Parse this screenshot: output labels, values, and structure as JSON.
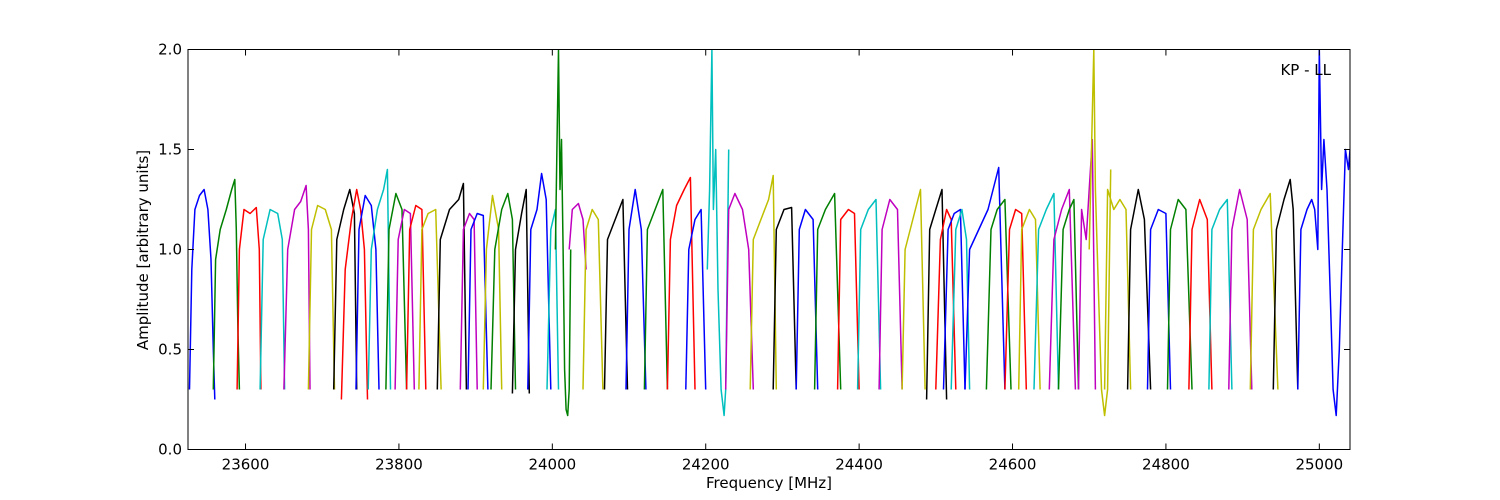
{
  "chart_data": {
    "type": "line",
    "title": "",
    "annotation": "KP - LL",
    "xlabel": "Frequency [MHz]",
    "ylabel": "Amplitude [arbitrary units]",
    "xlim": [
      23525,
      25040
    ],
    "ylim": [
      0.0,
      2.0
    ],
    "x_ticks": [
      23600,
      23800,
      24000,
      24200,
      24400,
      24600,
      24800,
      25000
    ],
    "y_ticks": [
      0.0,
      0.5,
      1.0,
      1.5,
      2.0
    ],
    "x_tick_labels": [
      "23600",
      "23800",
      "24000",
      "24200",
      "24400",
      "24600",
      "24800",
      "25000"
    ],
    "y_tick_labels": [
      "0.0",
      "0.5",
      "1.0",
      "1.5",
      "2.0"
    ],
    "grid": false,
    "series_colors": [
      "#0000ff",
      "#008000",
      "#ff0000",
      "#00bfbf",
      "#bf00bf",
      "#bfbf00",
      "#000000"
    ],
    "series": [
      {
        "color": "#0000ff",
        "x": [
          23527,
          23530,
          23534,
          23540,
          23546,
          23551,
          23555,
          23558,
          23560
        ],
        "y": [
          0.3,
          0.9,
          1.2,
          1.27,
          1.3,
          1.2,
          0.95,
          0.5,
          0.25
        ]
      },
      {
        "color": "#008000",
        "x": [
          23558,
          23561,
          23567,
          23575,
          23582,
          23586,
          23588,
          23590,
          23592
        ],
        "y": [
          0.3,
          0.95,
          1.1,
          1.2,
          1.3,
          1.35,
          1.1,
          0.6,
          0.3
        ]
      },
      {
        "color": "#ff0000",
        "x": [
          23589,
          23592,
          23598,
          23606,
          23614,
          23618,
          23620
        ],
        "y": [
          0.3,
          1.0,
          1.2,
          1.18,
          1.21,
          1.0,
          0.3
        ]
      },
      {
        "color": "#00bfbf",
        "x": [
          23619,
          23623,
          23632,
          23642,
          23648,
          23651
        ],
        "y": [
          0.3,
          1.05,
          1.2,
          1.18,
          1.05,
          0.3
        ]
      },
      {
        "color": "#bf00bf",
        "x": [
          23650,
          23655,
          23664,
          23672,
          23679,
          23682,
          23684
        ],
        "y": [
          0.3,
          1.0,
          1.2,
          1.24,
          1.32,
          1.1,
          0.3
        ]
      },
      {
        "color": "#bfbf00",
        "x": [
          23682,
          23686,
          23694,
          23704,
          23712,
          23716
        ],
        "y": [
          0.3,
          1.1,
          1.22,
          1.2,
          1.1,
          0.3
        ]
      },
      {
        "color": "#000000",
        "x": [
          23715,
          23719,
          23728,
          23736,
          23742,
          23745
        ],
        "y": [
          0.3,
          1.05,
          1.2,
          1.3,
          1.18,
          0.3
        ]
      },
      {
        "color": "#ff0000",
        "x": [
          23725,
          23730,
          23738,
          23745,
          23750,
          23755,
          23759
        ],
        "y": [
          0.25,
          0.9,
          1.15,
          1.3,
          1.2,
          1.0,
          0.25
        ]
      },
      {
        "color": "#0000ff",
        "x": [
          23744,
          23748,
          23756,
          23764,
          23770,
          23774
        ],
        "y": [
          0.3,
          1.1,
          1.27,
          1.22,
          1.0,
          0.3
        ]
      },
      {
        "color": "#00bfbf",
        "x": [
          23760,
          23764,
          23772,
          23780,
          23785,
          23789
        ],
        "y": [
          0.3,
          1.0,
          1.2,
          1.3,
          1.4,
          0.3
        ]
      },
      {
        "color": "#008000",
        "x": [
          23783,
          23787,
          23796,
          23804,
          23810
        ],
        "y": [
          0.3,
          1.1,
          1.28,
          1.2,
          0.3
        ]
      },
      {
        "color": "#bf00bf",
        "x": [
          23795,
          23799,
          23807,
          23815,
          23820
        ],
        "y": [
          0.3,
          1.05,
          1.2,
          1.18,
          0.3
        ]
      },
      {
        "color": "#ff0000",
        "x": [
          23810,
          23814,
          23822,
          23830,
          23835
        ],
        "y": [
          0.3,
          1.1,
          1.22,
          1.2,
          0.3
        ]
      },
      {
        "color": "#bfbf00",
        "x": [
          23826,
          23830,
          23838,
          23848,
          23855
        ],
        "y": [
          0.3,
          1.1,
          1.18,
          1.2,
          0.3
        ]
      },
      {
        "color": "#000000",
        "x": [
          23850,
          23854,
          23866,
          23878,
          23884,
          23888
        ],
        "y": [
          0.3,
          1.05,
          1.2,
          1.25,
          1.33,
          0.3
        ]
      },
      {
        "color": "#bf00bf",
        "x": [
          23880,
          23884,
          23892,
          23898,
          23902
        ],
        "y": [
          0.3,
          1.1,
          1.18,
          1.15,
          0.3
        ]
      },
      {
        "color": "#0000ff",
        "x": [
          23890,
          23894,
          23902,
          23910,
          23916
        ],
        "y": [
          0.3,
          1.1,
          1.18,
          1.17,
          0.3
        ]
      },
      {
        "color": "#bfbf00",
        "x": [
          23910,
          23914,
          23922,
          23930,
          23934
        ],
        "y": [
          0.3,
          1.0,
          1.27,
          1.1,
          0.3
        ]
      },
      {
        "color": "#008000",
        "x": [
          23920,
          23925,
          23934,
          23942,
          23948,
          23952
        ],
        "y": [
          0.3,
          1.0,
          1.2,
          1.28,
          1.15,
          0.3
        ]
      },
      {
        "color": "#000000",
        "x": [
          23948,
          23952,
          23960,
          23966,
          23970
        ],
        "y": [
          0.28,
          1.0,
          1.18,
          1.3,
          0.28
        ]
      },
      {
        "color": "#0000ff",
        "x": [
          23968,
          23972,
          23980,
          23986,
          23992,
          23998
        ],
        "y": [
          0.3,
          1.1,
          1.2,
          1.38,
          1.25,
          0.3
        ]
      },
      {
        "color": "#00bfbf",
        "x": [
          23993,
          23998,
          24004,
          24008
        ],
        "y": [
          0.3,
          1.1,
          1.2,
          0.3
        ]
      },
      {
        "color": "#008000",
        "x": [
          24004,
          24006,
          24008,
          24010,
          24012,
          24014,
          24016,
          24018,
          24020,
          24022,
          24024
        ],
        "y": [
          1.0,
          1.5,
          2.0,
          1.3,
          1.55,
          1.0,
          0.4,
          0.2,
          0.17,
          0.3,
          1.0
        ]
      },
      {
        "color": "#bf00bf",
        "x": [
          24022,
          24026,
          24034,
          24040,
          24044
        ],
        "y": [
          1.0,
          1.2,
          1.23,
          1.15,
          0.9
        ]
      },
      {
        "color": "#bfbf00",
        "x": [
          24040,
          24044,
          24052,
          24060,
          24066
        ],
        "y": [
          0.3,
          1.1,
          1.2,
          1.15,
          0.3
        ]
      },
      {
        "color": "#000000",
        "x": [
          24068,
          24072,
          24082,
          24092,
          24098
        ],
        "y": [
          0.3,
          1.05,
          1.15,
          1.25,
          0.3
        ]
      },
      {
        "color": "#0000ff",
        "x": [
          24096,
          24100,
          24108,
          24116,
          24122
        ],
        "y": [
          0.3,
          1.1,
          1.3,
          1.1,
          0.3
        ]
      },
      {
        "color": "#008000",
        "x": [
          24120,
          24124,
          24134,
          24144,
          24150
        ],
        "y": [
          0.3,
          1.1,
          1.2,
          1.3,
          0.3
        ]
      },
      {
        "color": "#ff0000",
        "x": [
          24150,
          24154,
          24162,
          24172,
          24180,
          24186
        ],
        "y": [
          0.3,
          1.05,
          1.22,
          1.3,
          1.36,
          0.3
        ]
      },
      {
        "color": "#0000ff",
        "x": [
          24174,
          24178,
          24186,
          24194,
          24200
        ],
        "y": [
          0.3,
          1.0,
          1.15,
          1.2,
          0.3
        ]
      },
      {
        "color": "#00bfbf",
        "x": [
          24202,
          24205,
          24208,
          24210,
          24213,
          24216,
          24220,
          24224,
          24226,
          24230
        ],
        "y": [
          0.9,
          1.3,
          2.0,
          1.2,
          1.5,
          0.8,
          0.3,
          0.17,
          0.3,
          1.5
        ]
      },
      {
        "color": "#bf00bf",
        "x": [
          24226,
          24230,
          24238,
          24248,
          24256,
          24262
        ],
        "y": [
          0.3,
          1.2,
          1.28,
          1.2,
          1.0,
          0.3
        ]
      },
      {
        "color": "#bfbf00",
        "x": [
          24258,
          24262,
          24272,
          24282,
          24288,
          24292
        ],
        "y": [
          0.3,
          1.05,
          1.15,
          1.25,
          1.37,
          0.3
        ]
      },
      {
        "color": "#000000",
        "x": [
          24288,
          24292,
          24302,
          24312,
          24318
        ],
        "y": [
          0.3,
          1.1,
          1.2,
          1.21,
          0.3
        ]
      },
      {
        "color": "#0000ff",
        "x": [
          24318,
          24322,
          24330,
          24340,
          24346
        ],
        "y": [
          0.3,
          1.1,
          1.2,
          1.15,
          0.3
        ]
      },
      {
        "color": "#008000",
        "x": [
          24342,
          24346,
          24356,
          24368,
          24376
        ],
        "y": [
          0.3,
          1.1,
          1.2,
          1.28,
          0.3
        ]
      },
      {
        "color": "#ff0000",
        "x": [
          24372,
          24376,
          24386,
          24394,
          24400
        ],
        "y": [
          0.3,
          1.15,
          1.2,
          1.18,
          0.3
        ]
      },
      {
        "color": "#00bfbf",
        "x": [
          24398,
          24402,
          24412,
          24422,
          24428
        ],
        "y": [
          0.3,
          1.1,
          1.2,
          1.25,
          0.3
        ]
      },
      {
        "color": "#bf00bf",
        "x": [
          24426,
          24430,
          24440,
          24450,
          24456
        ],
        "y": [
          0.3,
          1.1,
          1.25,
          1.2,
          0.3
        ]
      },
      {
        "color": "#bfbf00",
        "x": [
          24456,
          24460,
          24470,
          24480,
          24486
        ],
        "y": [
          0.3,
          1.0,
          1.15,
          1.3,
          0.3
        ]
      },
      {
        "color": "#000000",
        "x": [
          24488,
          24492,
          24500,
          24508,
          24514
        ],
        "y": [
          0.25,
          1.1,
          1.2,
          1.3,
          0.25
        ]
      },
      {
        "color": "#ff0000",
        "x": [
          24500,
          24506,
          24514,
          24520,
          24526
        ],
        "y": [
          0.3,
          1.05,
          1.2,
          1.15,
          0.3
        ]
      },
      {
        "color": "#0000ff",
        "x": [
          24510,
          24516,
          24524,
          24532,
          24538
        ],
        "y": [
          0.3,
          1.1,
          1.18,
          1.2,
          0.3
        ]
      },
      {
        "color": "#00bfbf",
        "x": [
          24520,
          24526,
          24534,
          24540,
          24544
        ],
        "y": [
          0.3,
          1.1,
          1.2,
          1.05,
          0.3
        ]
      },
      {
        "color": "#0000ff",
        "x": [
          24538,
          24544,
          24556,
          24568,
          24582,
          24590
        ],
        "y": [
          0.3,
          1.0,
          1.1,
          1.2,
          1.41,
          0.3
        ]
      },
      {
        "color": "#008000",
        "x": [
          24566,
          24572,
          24580,
          24590,
          24598
        ],
        "y": [
          0.3,
          1.1,
          1.2,
          1.25,
          0.3
        ]
      },
      {
        "color": "#ff0000",
        "x": [
          24590,
          24596,
          24604,
          24612,
          24618
        ],
        "y": [
          0.3,
          1.1,
          1.2,
          1.18,
          0.3
        ]
      },
      {
        "color": "#bfbf00",
        "x": [
          24608,
          24612,
          24622,
          24630,
          24636
        ],
        "y": [
          0.3,
          1.1,
          1.2,
          1.15,
          0.3
        ]
      },
      {
        "color": "#00bfbf",
        "x": [
          24628,
          24634,
          24644,
          24654,
          24660
        ],
        "y": [
          0.3,
          1.1,
          1.2,
          1.28,
          0.3
        ]
      },
      {
        "color": "#bf00bf",
        "x": [
          24648,
          24654,
          24664,
          24674,
          24682
        ],
        "y": [
          0.3,
          1.05,
          1.2,
          1.3,
          0.3
        ]
      },
      {
        "color": "#008000",
        "x": [
          24660,
          24666,
          24674,
          24680,
          24686
        ],
        "y": [
          0.3,
          1.1,
          1.2,
          1.25,
          0.3
        ]
      },
      {
        "color": "#bf00bf",
        "x": [
          24686,
          24690,
          24696,
          24700,
          24704,
          24708
        ],
        "y": [
          0.3,
          1.2,
          1.05,
          1.3,
          1.55,
          0.3
        ]
      },
      {
        "color": "#bfbf00",
        "x": [
          24700,
          24703,
          24706,
          24708,
          24712,
          24716,
          24720,
          24724,
          24728
        ],
        "y": [
          1.0,
          1.5,
          2.0,
          1.3,
          0.8,
          0.3,
          0.17,
          0.3,
          1.4
        ]
      },
      {
        "color": "#bfbf00",
        "x": [
          24720,
          24724,
          24732,
          24740,
          24748,
          24754
        ],
        "y": [
          0.3,
          1.3,
          1.2,
          1.25,
          1.2,
          0.3
        ]
      },
      {
        "color": "#000000",
        "x": [
          24750,
          24754,
          24764,
          24772,
          24780
        ],
        "y": [
          0.3,
          1.1,
          1.3,
          1.15,
          0.3
        ]
      },
      {
        "color": "#0000ff",
        "x": [
          24776,
          24780,
          24790,
          24800,
          24806
        ],
        "y": [
          0.3,
          1.1,
          1.2,
          1.18,
          0.3
        ]
      },
      {
        "color": "#008000",
        "x": [
          24802,
          24806,
          24816,
          24826,
          24834
        ],
        "y": [
          0.3,
          1.1,
          1.25,
          1.2,
          0.3
        ]
      },
      {
        "color": "#ff0000",
        "x": [
          24830,
          24834,
          24844,
          24854,
          24860
        ],
        "y": [
          0.3,
          1.1,
          1.25,
          1.15,
          0.3
        ]
      },
      {
        "color": "#00bfbf",
        "x": [
          24856,
          24860,
          24870,
          24880,
          24886
        ],
        "y": [
          0.3,
          1.1,
          1.2,
          1.25,
          0.3
        ]
      },
      {
        "color": "#bf00bf",
        "x": [
          24882,
          24886,
          24896,
          24906,
          24912
        ],
        "y": [
          0.3,
          1.1,
          1.3,
          1.15,
          0.3
        ]
      },
      {
        "color": "#bfbf00",
        "x": [
          24910,
          24914,
          24924,
          24936,
          24946
        ],
        "y": [
          0.3,
          1.1,
          1.2,
          1.28,
          0.3
        ]
      },
      {
        "color": "#000000",
        "x": [
          24940,
          24944,
          24954,
          24962,
          24966,
          24972
        ],
        "y": [
          0.3,
          1.1,
          1.25,
          1.35,
          1.2,
          0.3
        ]
      },
      {
        "color": "#0000ff",
        "x": [
          24972,
          24976,
          24984,
          24990,
          24994,
          24998,
          25000,
          25003,
          25006,
          25010,
          25014,
          25018,
          25022,
          25026,
          25030,
          25034,
          25038,
          25040
        ],
        "y": [
          0.3,
          1.1,
          1.2,
          1.25,
          1.2,
          1.0,
          2.0,
          1.3,
          1.55,
          1.3,
          0.8,
          0.3,
          0.17,
          0.5,
          1.0,
          1.5,
          1.4,
          1.5
        ]
      }
    ]
  }
}
